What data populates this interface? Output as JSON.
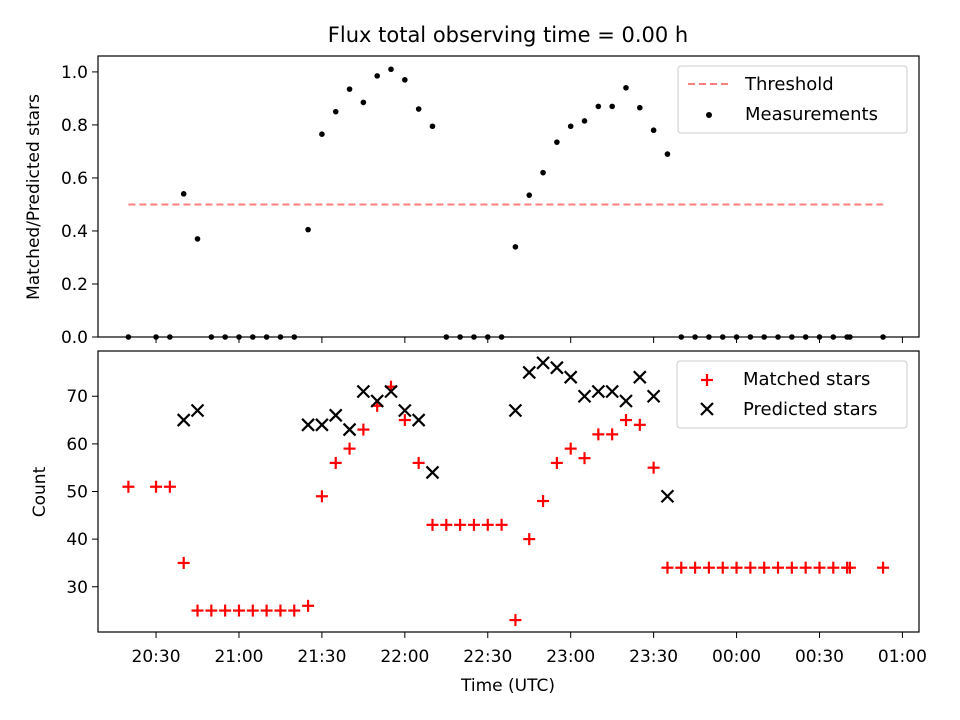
{
  "figure": {
    "title": "Flux total observing time = 0.00 h"
  },
  "chart_data": [
    {
      "type": "scatter",
      "ylabel": "Matched/Predicted stars",
      "xlabel": "",
      "ylim": [
        0,
        1.06
      ],
      "yticks": [
        "0.0",
        "0.2",
        "0.4",
        "0.6",
        "0.8",
        "1.0"
      ],
      "legend": {
        "position": "top-right"
      },
      "colors": {
        "threshold": "#ff7f7f",
        "points": "#000000"
      },
      "threshold": {
        "name": "Threshold",
        "value": 0.5,
        "x": [
          "20:20",
          "24:53"
        ]
      },
      "series": [
        {
          "name": "Measurements",
          "x": [
            "20:20",
            "20:30",
            "20:35",
            "20:40",
            "20:45",
            "20:50",
            "20:55",
            "21:00",
            "21:05",
            "21:10",
            "21:15",
            "21:20",
            "21:25",
            "21:30",
            "21:35",
            "21:40",
            "21:45",
            "21:50",
            "21:55",
            "22:00",
            "22:05",
            "22:10",
            "22:15",
            "22:20",
            "22:25",
            "22:30",
            "22:35",
            "22:40",
            "22:45",
            "22:50",
            "22:55",
            "23:00",
            "23:05",
            "23:10",
            "23:15",
            "23:20",
            "23:25",
            "23:30",
            "23:35",
            "23:40",
            "23:45",
            "23:50",
            "23:55",
            "24:00",
            "24:05",
            "24:10",
            "24:15",
            "24:20",
            "24:25",
            "24:30",
            "24:35",
            "24:40",
            "24:41",
            "24:53"
          ],
          "y": [
            0,
            0,
            0,
            0.54,
            0.37,
            0,
            0,
            0,
            0,
            0,
            0,
            0,
            0.405,
            0.765,
            0.85,
            0.935,
            0.885,
            0.985,
            1.01,
            0.97,
            0.86,
            0.795,
            0,
            0,
            0,
            0,
            0,
            0.34,
            0.535,
            0.62,
            0.735,
            0.795,
            0.815,
            0.87,
            0.87,
            0.94,
            0.865,
            0.78,
            0.69,
            0,
            0,
            0,
            0,
            0,
            0,
            0,
            0,
            0,
            0,
            0,
            0,
            0,
            0,
            0
          ]
        }
      ]
    },
    {
      "type": "scatter",
      "ylabel": "Count",
      "xlabel": "Time (UTC)",
      "ylim": [
        20.5,
        79.5
      ],
      "yticks": [
        "30",
        "40",
        "50",
        "60",
        "70"
      ],
      "xlim": [
        "20:09",
        "25:06"
      ],
      "xticks": [
        "20:30",
        "21:00",
        "21:30",
        "22:00",
        "22:30",
        "23:00",
        "23:30",
        "00:00",
        "00:30",
        "01:00"
      ],
      "legend": {
        "position": "top-right"
      },
      "colors": {
        "matched": "#ff0000",
        "predicted": "#000000"
      },
      "series": [
        {
          "name": "Matched stars",
          "x": [
            "20:20",
            "20:30",
            "20:35",
            "20:40",
            "20:45",
            "20:50",
            "20:55",
            "21:00",
            "21:05",
            "21:10",
            "21:15",
            "21:20",
            "21:25",
            "21:30",
            "21:35",
            "21:40",
            "21:45",
            "21:50",
            "21:55",
            "22:00",
            "22:05",
            "22:10",
            "22:15",
            "22:20",
            "22:25",
            "22:30",
            "22:35",
            "22:40",
            "22:45",
            "22:50",
            "22:55",
            "23:00",
            "23:05",
            "23:10",
            "23:15",
            "23:20",
            "23:25",
            "23:30",
            "23:35",
            "23:40",
            "23:45",
            "23:50",
            "23:55",
            "24:00",
            "24:05",
            "24:10",
            "24:15",
            "24:20",
            "24:25",
            "24:30",
            "24:35",
            "24:40",
            "24:41",
            "24:53"
          ],
          "y": [
            51,
            51,
            51,
            35,
            25,
            25,
            25,
            25,
            25,
            25,
            25,
            25,
            26,
            49,
            56,
            59,
            63,
            68,
            72,
            65,
            56,
            43,
            43,
            43,
            43,
            43,
            43,
            23,
            40,
            48,
            56,
            59,
            57,
            62,
            62,
            65,
            64,
            55,
            34,
            34,
            34,
            34,
            34,
            34,
            34,
            34,
            34,
            34,
            34,
            34,
            34,
            34,
            34,
            34
          ]
        },
        {
          "name": "Predicted stars",
          "x": [
            "20:40",
            "20:45",
            "21:25",
            "21:30",
            "21:35",
            "21:40",
            "21:45",
            "21:50",
            "21:55",
            "22:00",
            "22:05",
            "22:10",
            "22:40",
            "22:45",
            "22:50",
            "22:55",
            "23:00",
            "23:05",
            "23:10",
            "23:15",
            "23:20",
            "23:25",
            "23:30",
            "23:35"
          ],
          "y": [
            65,
            67,
            64,
            64,
            66,
            63,
            71,
            69,
            71,
            67,
            65,
            54,
            67,
            75,
            77,
            76,
            74,
            70,
            71,
            71,
            69,
            74,
            70,
            49
          ]
        }
      ]
    }
  ]
}
